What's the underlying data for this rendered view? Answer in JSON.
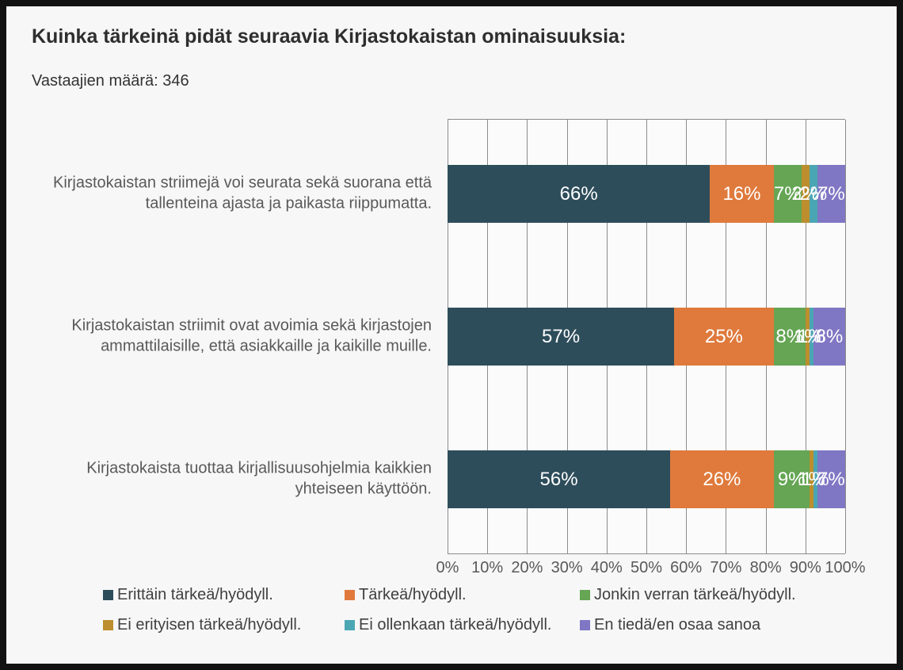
{
  "title": "Kuinka tärkeinä pidät seuraavia Kirjastokaistan ominaisuuksia:",
  "respondents_label": "Vastaajien määrä: 346",
  "colors": {
    "series_very_important": "#2e4d5b",
    "series_important": "#df7a3c",
    "series_somewhat_important": "#65a554",
    "series_not_particularly": "#bc8e2d",
    "series_not_at_all": "#4ba6b4",
    "series_dont_know": "#7f77c4",
    "gridline": "#8c8c8c",
    "axis_text": "#595959",
    "bar_label_text": "#ffffff"
  },
  "chart_data": {
    "type": "bar",
    "stacked": true,
    "orientation": "horizontal",
    "title": "Kuinka tärkeinä pidät seuraavia Kirjastokaistan ominaisuuksia:",
    "subtitle": "Vastaajien määrä: 346",
    "categories": [
      "Kirjastokaistan striimejä voi seurata sekä suorana että tallenteina ajasta ja paikasta riippumatta.",
      "Kirjastokaistan striimit ovat avoimia sekä kirjastojen ammattilaisille, että asiakkaille ja kaikille muille.",
      "Kirjastokaista tuottaa kirjallisuusohjelmia kaikkien yhteiseen käyttöön."
    ],
    "series": [
      {
        "name": "Erittäin tärkeä/hyödyll.",
        "color": "#2e4d5b",
        "values": [
          66,
          57,
          56
        ]
      },
      {
        "name": "Tärkeä/hyödyll.",
        "color": "#df7a3c",
        "values": [
          16,
          25,
          26
        ]
      },
      {
        "name": "Jonkin verran tärkeä/hyödyll.",
        "color": "#65a554",
        "values": [
          7,
          8,
          9
        ]
      },
      {
        "name": "Ei erityisen tärkeä/hyödyll.",
        "color": "#bc8e2d",
        "values": [
          2,
          1,
          1
        ]
      },
      {
        "name": "Ei ollenkaan tärkeä/hyödyll.",
        "color": "#4ba6b4",
        "values": [
          2,
          1,
          1
        ]
      },
      {
        "name": "En tiedä/en osaa sanoa",
        "color": "#7f77c4",
        "values": [
          7,
          8,
          7
        ]
      }
    ],
    "value_suffix": "%",
    "x_ticks": [
      "0%",
      "10%",
      "20%",
      "30%",
      "40%",
      "50%",
      "60%",
      "70%",
      "80%",
      "90%",
      "100%"
    ],
    "xlim": [
      0,
      100
    ],
    "grid": "vertical",
    "legend_position": "bottom"
  }
}
